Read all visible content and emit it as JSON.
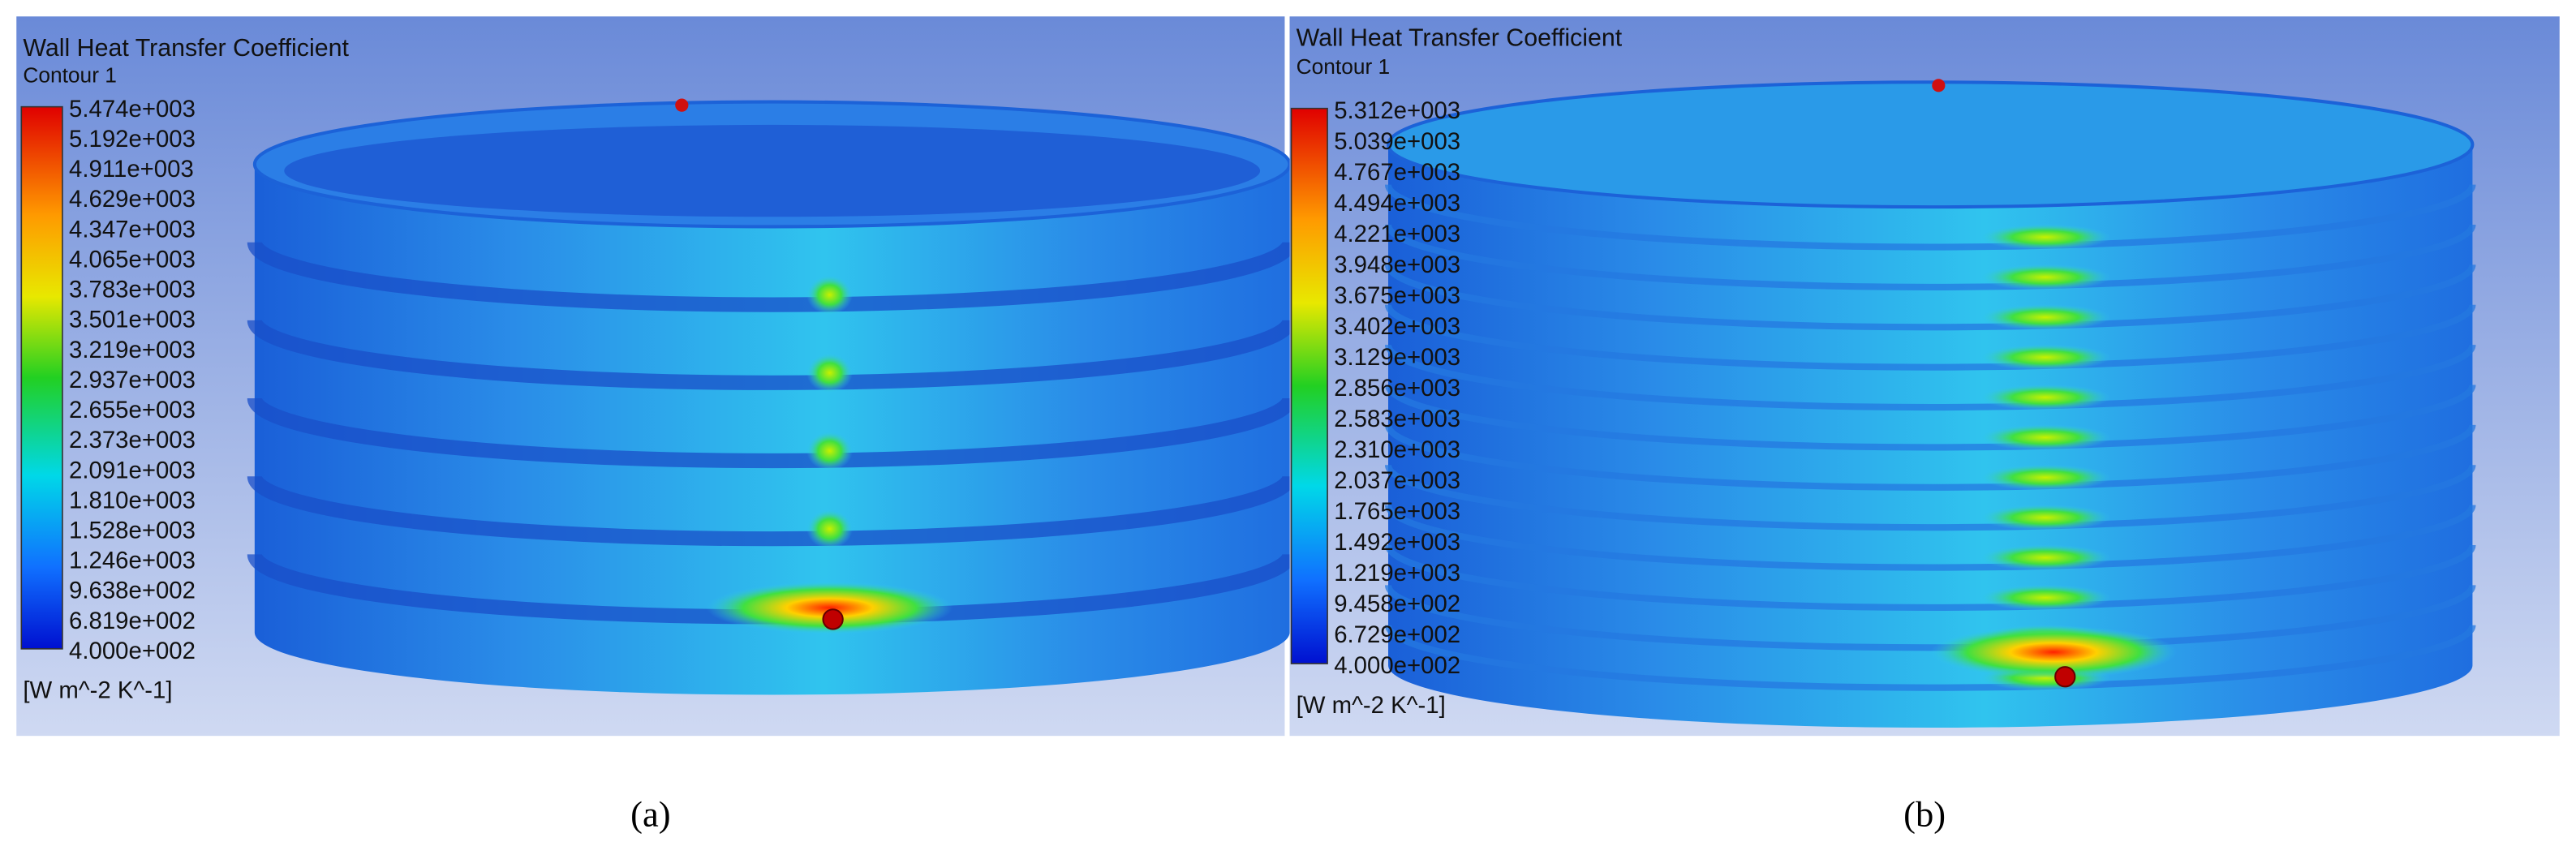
{
  "panels": [
    {
      "title": "Wall Heat Transfer Coefficient",
      "subtitle": "Contour 1",
      "legend_labels": [
        "5.474e+003",
        "5.192e+003",
        "4.911e+003",
        "4.629e+003",
        "4.347e+003",
        "4.065e+003",
        "3.783e+003",
        "3.501e+003",
        "3.219e+003",
        "2.937e+003",
        "2.655e+003",
        "2.373e+003",
        "2.091e+003",
        "1.810e+003",
        "1.528e+003",
        "1.246e+003",
        "9.638e+002",
        "6.819e+002",
        "4.000e+002"
      ],
      "unit": "[W m^-2 K^-1]",
      "caption": "(a)"
    },
    {
      "title": "Wall Heat Transfer Coefficient",
      "subtitle": "Contour 1",
      "legend_labels": [
        "5.312e+003",
        "5.039e+003",
        "4.767e+003",
        "4.494e+003",
        "4.221e+003",
        "3.948e+003",
        "3.675e+003",
        "3.402e+003",
        "3.129e+003",
        "2.856e+003",
        "2.583e+003",
        "2.310e+003",
        "2.037e+003",
        "1.765e+003",
        "1.492e+003",
        "1.219e+003",
        "9.458e+002",
        "6.729e+002",
        "4.000e+002"
      ],
      "unit": "[W m^-2 K^-1]",
      "caption": "(b)"
    }
  ]
}
